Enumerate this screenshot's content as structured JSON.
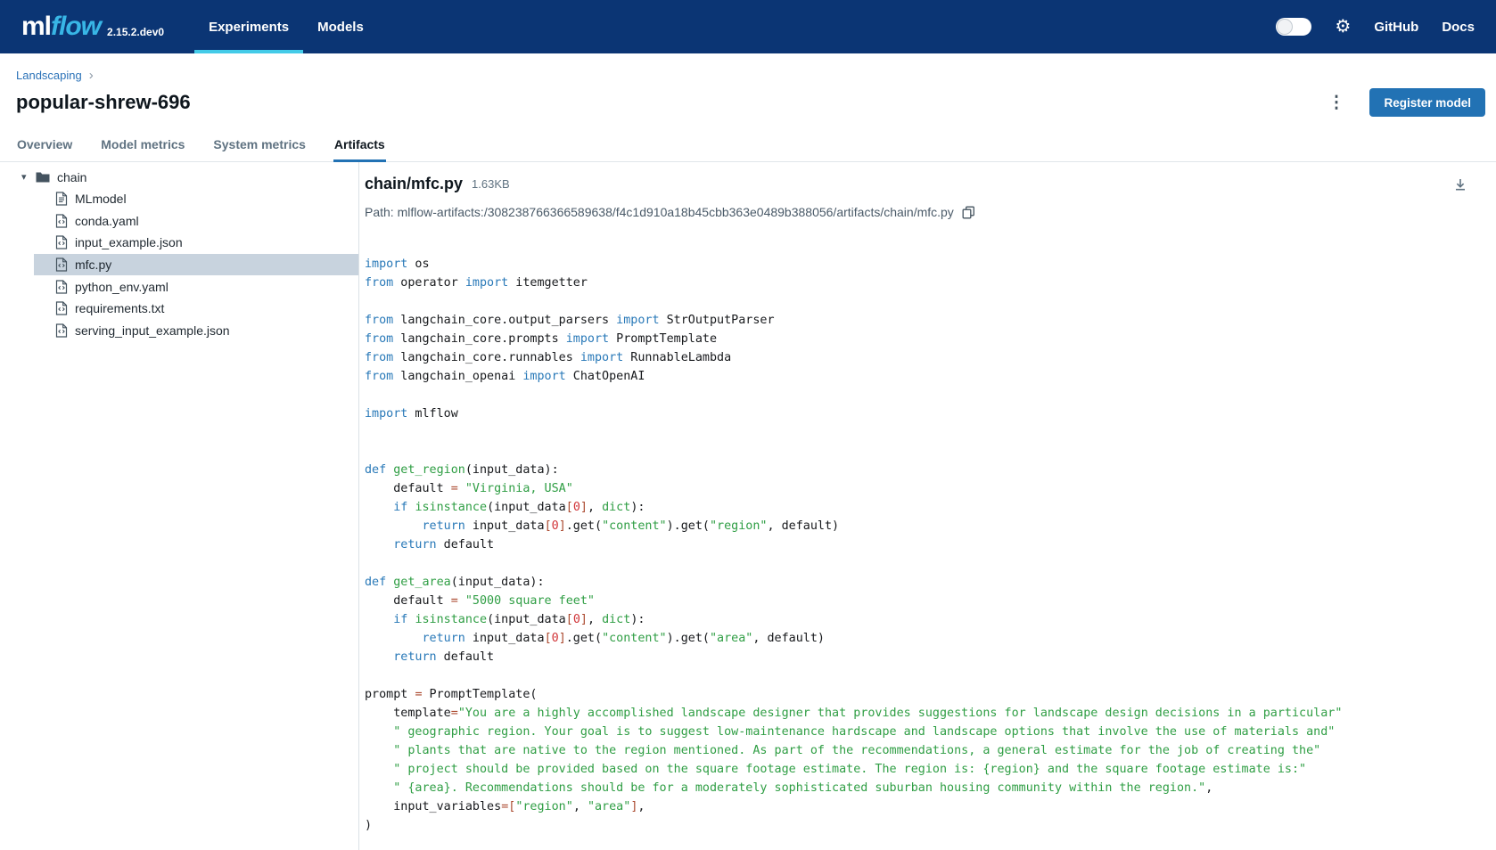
{
  "colors": {
    "navbar_bg": "#0b3574",
    "brand_flow": "#38b6e6",
    "nav_active_underline": "#43cbe8",
    "accent_blue": "#2272b4",
    "selected_row_bg": "#c8d3de",
    "code_keyword": "#2979b8",
    "code_string_name": "#2f9e44",
    "code_number": "#d13438",
    "code_operator": "#ab4a2f"
  },
  "icons": {
    "gear": "⚙",
    "kebab": "⋮",
    "breadcrumb_chevron": "›",
    "tree_caret": "▾"
  },
  "navbar": {
    "logo_ml": "ml",
    "logo_flow": "flow",
    "version": "2.15.2.dev0",
    "items": [
      {
        "label": "Experiments",
        "active": true
      },
      {
        "label": "Models",
        "active": false
      }
    ],
    "right_links": [
      {
        "label": "GitHub"
      },
      {
        "label": "Docs"
      }
    ]
  },
  "breadcrumb": {
    "experiment": "Landscaping"
  },
  "run": {
    "title": "popular-shrew-696",
    "register_button": "Register model"
  },
  "tabs": [
    {
      "label": "Overview",
      "active": false
    },
    {
      "label": "Model metrics",
      "active": false
    },
    {
      "label": "System metrics",
      "active": false
    },
    {
      "label": "Artifacts",
      "active": true
    }
  ],
  "file_tree": {
    "folder": "chain",
    "files": [
      {
        "name": "MLmodel",
        "icon": "text-file",
        "selected": false
      },
      {
        "name": "conda.yaml",
        "icon": "code-file",
        "selected": false
      },
      {
        "name": "input_example.json",
        "icon": "code-file",
        "selected": false
      },
      {
        "name": "mfc.py",
        "icon": "code-file",
        "selected": true
      },
      {
        "name": "python_env.yaml",
        "icon": "code-file",
        "selected": false
      },
      {
        "name": "requirements.txt",
        "icon": "code-file",
        "selected": false
      },
      {
        "name": "serving_input_example.json",
        "icon": "code-file",
        "selected": false
      }
    ]
  },
  "viewer": {
    "file_label": "chain/mfc.py",
    "file_size": "1.63KB",
    "path_label": "Path: mlflow-artifacts:/308238766366589638/f4c1d910a18b45cbb363e0489b388056/artifacts/chain/mfc.py",
    "code_lines": [
      [
        [
          "k",
          "import"
        ],
        [
          "p",
          " os"
        ]
      ],
      [
        [
          "k",
          "from"
        ],
        [
          "p",
          " operator "
        ],
        [
          "k",
          "import"
        ],
        [
          "p",
          " itemgetter"
        ]
      ],
      [],
      [
        [
          "k",
          "from"
        ],
        [
          "p",
          " langchain_core.output_parsers "
        ],
        [
          "k",
          "import"
        ],
        [
          "p",
          " StrOutputParser"
        ]
      ],
      [
        [
          "k",
          "from"
        ],
        [
          "p",
          " langchain_core.prompts "
        ],
        [
          "k",
          "import"
        ],
        [
          "p",
          " PromptTemplate"
        ]
      ],
      [
        [
          "k",
          "from"
        ],
        [
          "p",
          " langchain_core.runnables "
        ],
        [
          "k",
          "import"
        ],
        [
          "p",
          " RunnableLambda"
        ]
      ],
      [
        [
          "k",
          "from"
        ],
        [
          "p",
          " langchain_openai "
        ],
        [
          "k",
          "import"
        ],
        [
          "p",
          " ChatOpenAI"
        ]
      ],
      [],
      [
        [
          "k",
          "import"
        ],
        [
          "p",
          " mlflow"
        ]
      ],
      [],
      [],
      [
        [
          "k",
          "def"
        ],
        [
          "p",
          " "
        ],
        [
          "n",
          "get_region"
        ],
        [
          "p",
          "(input_data):"
        ]
      ],
      [
        [
          "p",
          "    default "
        ],
        [
          "o",
          "="
        ],
        [
          "p",
          " "
        ],
        [
          "s",
          "\"Virginia, USA\""
        ]
      ],
      [
        [
          "p",
          "    "
        ],
        [
          "k",
          "if"
        ],
        [
          "p",
          " "
        ],
        [
          "n",
          "isinstance"
        ],
        [
          "p",
          "(input_data"
        ],
        [
          "o",
          "["
        ],
        [
          "d",
          "0"
        ],
        [
          "o",
          "]"
        ],
        [
          "p",
          ", "
        ],
        [
          "n",
          "dict"
        ],
        [
          "p",
          "):"
        ]
      ],
      [
        [
          "p",
          "        "
        ],
        [
          "k",
          "return"
        ],
        [
          "p",
          " input_data"
        ],
        [
          "o",
          "["
        ],
        [
          "d",
          "0"
        ],
        [
          "o",
          "]"
        ],
        [
          "p",
          ".get("
        ],
        [
          "s",
          "\"content\""
        ],
        [
          "p",
          ").get("
        ],
        [
          "s",
          "\"region\""
        ],
        [
          "p",
          ", default)"
        ]
      ],
      [
        [
          "p",
          "    "
        ],
        [
          "k",
          "return"
        ],
        [
          "p",
          " default"
        ]
      ],
      [],
      [
        [
          "k",
          "def"
        ],
        [
          "p",
          " "
        ],
        [
          "n",
          "get_area"
        ],
        [
          "p",
          "(input_data):"
        ]
      ],
      [
        [
          "p",
          "    default "
        ],
        [
          "o",
          "="
        ],
        [
          "p",
          " "
        ],
        [
          "s",
          "\"5000 square feet\""
        ]
      ],
      [
        [
          "p",
          "    "
        ],
        [
          "k",
          "if"
        ],
        [
          "p",
          " "
        ],
        [
          "n",
          "isinstance"
        ],
        [
          "p",
          "(input_data"
        ],
        [
          "o",
          "["
        ],
        [
          "d",
          "0"
        ],
        [
          "o",
          "]"
        ],
        [
          "p",
          ", "
        ],
        [
          "n",
          "dict"
        ],
        [
          "p",
          "):"
        ]
      ],
      [
        [
          "p",
          "        "
        ],
        [
          "k",
          "return"
        ],
        [
          "p",
          " input_data"
        ],
        [
          "o",
          "["
        ],
        [
          "d",
          "0"
        ],
        [
          "o",
          "]"
        ],
        [
          "p",
          ".get("
        ],
        [
          "s",
          "\"content\""
        ],
        [
          "p",
          ").get("
        ],
        [
          "s",
          "\"area\""
        ],
        [
          "p",
          ", default)"
        ]
      ],
      [
        [
          "p",
          "    "
        ],
        [
          "k",
          "return"
        ],
        [
          "p",
          " default"
        ]
      ],
      [],
      [
        [
          "p",
          "prompt "
        ],
        [
          "o",
          "="
        ],
        [
          "p",
          " PromptTemplate("
        ]
      ],
      [
        [
          "p",
          "    template"
        ],
        [
          "o",
          "="
        ],
        [
          "s",
          "\"You are a highly accomplished landscape designer that provides suggestions for landscape design decisions in a particular\""
        ]
      ],
      [
        [
          "p",
          "    "
        ],
        [
          "s",
          "\" geographic region. Your goal is to suggest low-maintenance hardscape and landscape options that involve the use of materials and\""
        ]
      ],
      [
        [
          "p",
          "    "
        ],
        [
          "s",
          "\" plants that are native to the region mentioned. As part of the recommendations, a general estimate for the job of creating the\""
        ]
      ],
      [
        [
          "p",
          "    "
        ],
        [
          "s",
          "\" project should be provided based on the square footage estimate. The region is: {region} and the square footage estimate is:\""
        ]
      ],
      [
        [
          "p",
          "    "
        ],
        [
          "s",
          "\" {area}. Recommendations should be for a moderately sophisticated suburban housing community within the region.\""
        ],
        [
          "p",
          ","
        ]
      ],
      [
        [
          "p",
          "    input_variables"
        ],
        [
          "o",
          "=["
        ],
        [
          "s",
          "\"region\""
        ],
        [
          "p",
          ", "
        ],
        [
          "s",
          "\"area\""
        ],
        [
          "o",
          "]"
        ],
        [
          "p",
          ","
        ]
      ],
      [
        [
          "p",
          ")"
        ]
      ]
    ]
  }
}
